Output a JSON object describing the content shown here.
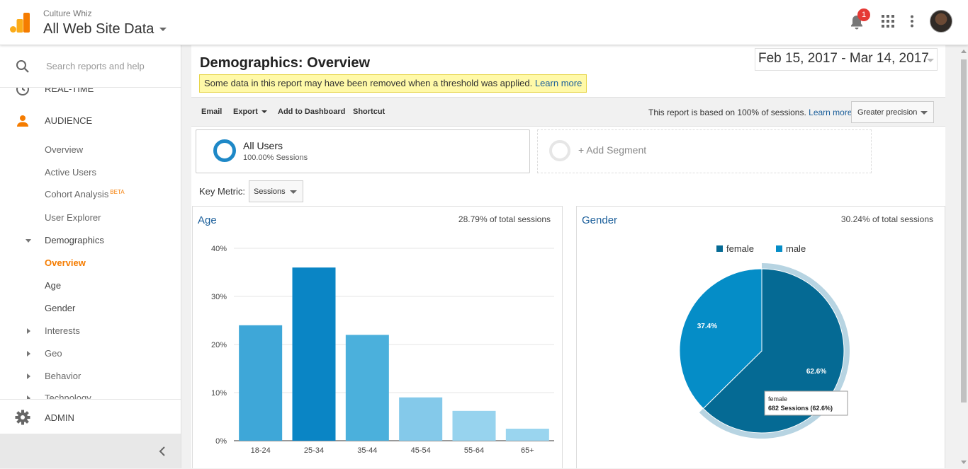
{
  "header": {
    "account_name": "Culture Whiz",
    "property_view": "All Web Site Data",
    "notification_count": "1"
  },
  "sidebar": {
    "search_placeholder": "Search reports and help",
    "realtime_label": "REAL-TIME",
    "audience_label": "AUDIENCE",
    "items": [
      {
        "label": "Overview"
      },
      {
        "label": "Active Users"
      },
      {
        "label": "Cohort Analysis",
        "badge": "BETA"
      },
      {
        "label": "User Explorer"
      },
      {
        "label": "Demographics"
      },
      {
        "label": "Overview"
      },
      {
        "label": "Age"
      },
      {
        "label": "Gender"
      },
      {
        "label": "Interests"
      },
      {
        "label": "Geo"
      },
      {
        "label": "Behavior"
      },
      {
        "label": "Technology"
      }
    ],
    "admin_label": "ADMIN"
  },
  "main": {
    "title": "Demographics: Overview",
    "date_range": "Feb 15, 2017 - Mar 14, 2017",
    "notice_text": "Some data in this report may have been removed when a threshold was applied.",
    "notice_link": "Learn more",
    "toolbar": {
      "email": "Email",
      "export": "Export",
      "add_to_dashboard": "Add to Dashboard",
      "shortcut": "Shortcut",
      "sampling_note": "This report is based on 100% of sessions.",
      "sampling_link": "Learn more",
      "precision": "Greater precision"
    },
    "segments": {
      "all_users": "All Users",
      "all_users_sub": "100.00% Sessions",
      "add_segment": "+ Add Segment"
    },
    "key_metric_label": "Key Metric:",
    "key_metric_value": "Sessions",
    "age_panel": {
      "title": "Age",
      "note": "28.79% of total sessions"
    },
    "gender_panel": {
      "title": "Gender",
      "note": "30.24% of total sessions"
    }
  },
  "chart_data": [
    {
      "type": "bar",
      "title": "Age",
      "categories": [
        "18-24",
        "25-34",
        "35-44",
        "45-54",
        "55-64",
        "65+"
      ],
      "values": [
        24,
        36,
        22,
        9,
        6.2,
        2.5
      ],
      "unit": "%",
      "ylim": [
        0,
        40
      ],
      "yticks": [
        "0%",
        "10%",
        "20%",
        "30%",
        "40%"
      ],
      "colors": [
        "#3ea7d8",
        "#0a85c5",
        "#4bb0dc",
        "#84c9ea",
        "#97d3ee",
        "#9ad5ef"
      ],
      "grid": true
    },
    {
      "type": "pie",
      "title": "Gender",
      "categories": [
        "female",
        "male"
      ],
      "values": [
        62.6,
        37.4
      ],
      "labels": [
        "62.6%",
        "37.4%"
      ],
      "colors": [
        "#056a94",
        "#058dc7"
      ],
      "legend": "top",
      "tooltip": {
        "title": "female",
        "text": "682 Sessions (62.6%)"
      }
    }
  ]
}
